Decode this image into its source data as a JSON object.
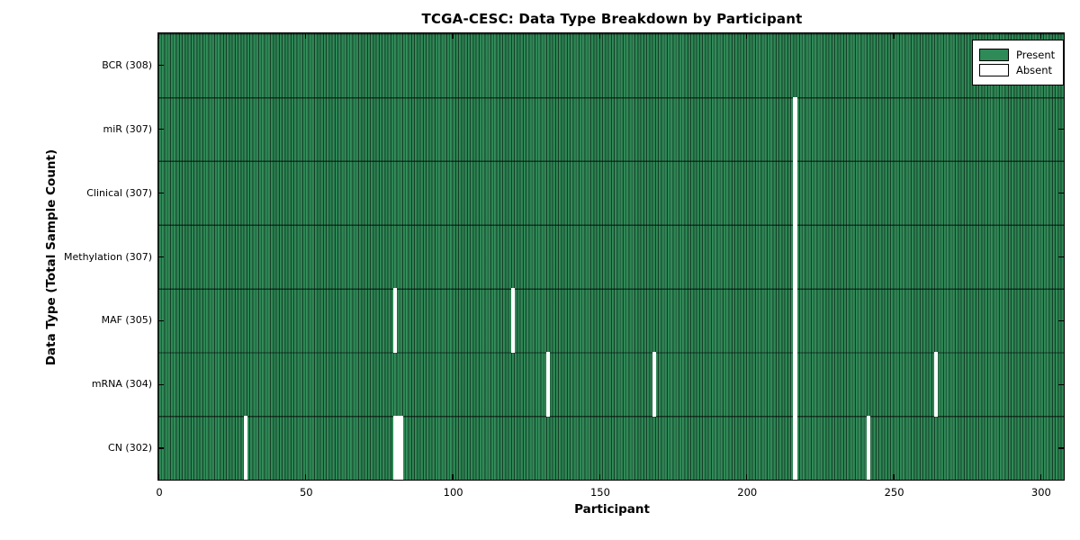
{
  "title": "TCGA-CESC: Data Type Breakdown by Participant",
  "xlabel": "Participant",
  "ylabel": "Data Type (Total Sample Count)",
  "legend": {
    "present_label": "Present",
    "absent_label": "Absent",
    "position": "upper right"
  },
  "colors": {
    "present": "#2e8b57",
    "absent": "#ffffff",
    "edge": "#000000"
  },
  "chart_data": {
    "type": "heatmap",
    "title": "TCGA-CESC: Data Type Breakdown by Participant",
    "xlabel": "Participant",
    "ylabel": "Data Type (Total Sample Count)",
    "n_participants": 308,
    "xlim": [
      0,
      308
    ],
    "x_ticks": [
      0,
      50,
      100,
      150,
      200,
      250,
      300
    ],
    "grid": false,
    "legend_position": "upper right",
    "rows": [
      {
        "data_type": "BCR",
        "label": "BCR (308)",
        "total": 308,
        "absent_participants": []
      },
      {
        "data_type": "miR",
        "label": "miR (307)",
        "total": 307,
        "absent_participants": [
          216
        ]
      },
      {
        "data_type": "Clinical",
        "label": "Clinical (307)",
        "total": 307,
        "absent_participants": [
          216
        ]
      },
      {
        "data_type": "Methylation",
        "label": "Methylation (307)",
        "total": 307,
        "absent_participants": [
          216
        ]
      },
      {
        "data_type": "MAF",
        "label": "MAF (305)",
        "total": 305,
        "absent_participants": [
          80,
          120,
          216
        ]
      },
      {
        "data_type": "mRNA",
        "label": "mRNA (304)",
        "total": 304,
        "absent_participants": [
          132,
          168,
          216,
          264
        ]
      },
      {
        "data_type": "CN",
        "label": "CN (302)",
        "total": 302,
        "absent_participants": [
          29,
          80,
          81,
          82,
          216,
          241
        ]
      }
    ]
  }
}
